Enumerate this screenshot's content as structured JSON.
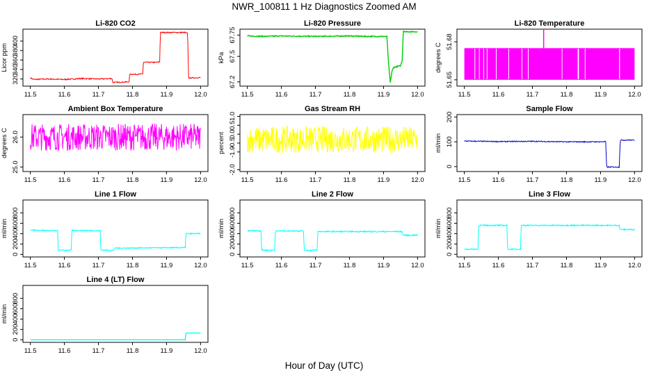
{
  "title": "NWR_100811  1 Hz Diagnostics Zoomed AM",
  "xlabel": "Hour of Day (UTC)",
  "chart_data": [
    {
      "type": "line",
      "title": "Li-820 CO2",
      "ylabel": "Licor ppm",
      "color": "#ff0000",
      "xlim": [
        11.5,
        12.0
      ],
      "ylim": [
        305,
        425
      ],
      "xticks": [
        "11.5",
        "11.6",
        "11.7",
        "11.8",
        "11.9",
        "12.0"
      ],
      "yticks": [
        {
          "v": 320,
          "label": "320"
        },
        {
          "v": 340,
          "label": "340"
        },
        {
          "v": 360,
          "label": "360"
        },
        {
          "v": 380,
          "label": "380"
        },
        {
          "v": 400,
          "label": "400"
        }
      ],
      "noise": 1.2,
      "series": [
        {
          "x": [
            11.5,
            11.51,
            11.55,
            11.6,
            11.65,
            11.7,
            11.74,
            11.742,
            11.76,
            11.79,
            11.792,
            11.82,
            11.83,
            11.832,
            11.87,
            11.88,
            11.882,
            11.955,
            11.962,
            11.965,
            12.0
          ],
          "y": [
            322,
            319,
            320,
            319,
            321,
            320,
            321,
            313,
            313,
            314,
            330,
            330,
            331,
            355,
            355,
            356,
            418,
            418,
            416,
            322,
            323
          ]
        }
      ]
    },
    {
      "type": "line",
      "title": "Li-820 Pressure",
      "ylabel": "kPa",
      "color": "#00cc00",
      "xlim": [
        11.5,
        12.0
      ],
      "ylim": [
        67.15,
        67.82
      ],
      "xticks": [
        "11.5",
        "11.6",
        "11.7",
        "11.8",
        "11.9",
        "12.0"
      ],
      "yticks": [
        {
          "v": 67.2,
          "label": "67.2"
        },
        {
          "v": 67.5,
          "label": "67.5"
        },
        {
          "v": 67.75,
          "label": "67.75"
        }
      ],
      "noise": 0.006,
      "series": [
        {
          "x": [
            11.5,
            11.55,
            11.6,
            11.7,
            11.8,
            11.85,
            11.9,
            11.91,
            11.915,
            11.92,
            11.925,
            11.93,
            11.95,
            11.955,
            11.958,
            11.965,
            12.0
          ],
          "y": [
            67.74,
            67.735,
            67.74,
            67.735,
            67.74,
            67.735,
            67.735,
            67.73,
            67.4,
            67.19,
            67.33,
            67.37,
            67.39,
            67.45,
            67.8,
            67.79,
            67.79
          ]
        }
      ]
    },
    {
      "type": "line",
      "title": "Li-820 Temperature",
      "ylabel": "degrees C",
      "color": "#ff00ff",
      "xlim": [
        11.5,
        12.0
      ],
      "ylim": [
        51.645,
        51.69
      ],
      "xticks": [
        "11.5",
        "11.6",
        "11.7",
        "11.8",
        "11.9",
        "12.0"
      ],
      "yticks": [
        {
          "v": 51.65,
          "label": "51.65"
        },
        {
          "v": 51.68,
          "label": "51.68"
        }
      ],
      "band": [
        51.65,
        51.675
      ],
      "spike": {
        "x": 11.733,
        "y": 51.69
      }
    },
    {
      "type": "line",
      "title": "Ambient Box Temperature",
      "ylabel": "degrees C",
      "color": "#ff00ff",
      "xlim": [
        11.5,
        12.0
      ],
      "ylim": [
        24.85,
        26.75
      ],
      "xticks": [
        "11.5",
        "11.6",
        "11.7",
        "11.8",
        "11.9",
        "12.0"
      ],
      "yticks": [
        {
          "v": 25.0,
          "label": "25.0"
        },
        {
          "v": 26.0,
          "label": "26.0"
        }
      ],
      "noise": 0.45,
      "series": [
        {
          "x": [
            11.5,
            12.0
          ],
          "y": [
            26.0,
            26.0
          ]
        }
      ]
    },
    {
      "type": "line",
      "title": "Gas Stream RH",
      "ylabel": "percent",
      "color": "#ffff00",
      "xlim": [
        11.5,
        12.0
      ],
      "ylim": [
        -2.1,
        1.1
      ],
      "xticks": [
        "11.5",
        "11.6",
        "11.7",
        "11.8",
        "11.9",
        "12.0"
      ],
      "yticks": [
        {
          "v": -2.0,
          "label": "-2.0"
        },
        {
          "v": -1.0,
          "label": "-1.0"
        },
        {
          "v": -0.5,
          "label": "-0.5"
        },
        {
          "v": 0.0,
          "label": "0.0"
        },
        {
          "v": 0.5,
          "label": "0.5"
        },
        {
          "v": 1.0,
          "label": "1.0"
        }
      ],
      "noise": 0.75,
      "series": [
        {
          "x": [
            11.5,
            12.0
          ],
          "y": [
            -0.3,
            -0.3
          ]
        }
      ]
    },
    {
      "type": "line",
      "title": "Sample Flow",
      "ylabel": "ml/min",
      "color": "#0000cc",
      "xlim": [
        11.5,
        12.0
      ],
      "ylim": [
        -20,
        210
      ],
      "xticks": [
        "11.5",
        "11.6",
        "11.7",
        "11.8",
        "11.9",
        "12.0"
      ],
      "yticks": [
        {
          "v": 0,
          "label": "0"
        },
        {
          "v": 100,
          "label": "100"
        },
        {
          "v": 200,
          "label": "200"
        }
      ],
      "noise": 2,
      "series": [
        {
          "x": [
            11.5,
            11.6,
            11.7,
            11.8,
            11.9,
            11.915,
            11.918,
            11.955,
            11.958,
            12.0
          ],
          "y": [
            103,
            101,
            102,
            100,
            100,
            101,
            -2,
            -2,
            107,
            107
          ]
        }
      ]
    },
    {
      "type": "line",
      "title": "Line 1 Flow",
      "ylabel": "ml/min",
      "color": "#00ffff",
      "xlim": [
        11.5,
        12.0
      ],
      "ylim": [
        -50,
        1050
      ],
      "xticks": [
        "11.5",
        "11.6",
        "11.7",
        "11.8",
        "11.9",
        "12.0"
      ],
      "yticks": [
        {
          "v": 0,
          "label": "0"
        },
        {
          "v": 200,
          "label": "200"
        },
        {
          "v": 400,
          "label": "400"
        },
        {
          "v": 600,
          "label": "600"
        },
        {
          "v": 800,
          "label": "800"
        }
      ],
      "noise": 10,
      "series": [
        {
          "x": [
            11.5,
            11.58,
            11.582,
            11.62,
            11.622,
            11.705,
            11.707,
            11.745,
            11.747,
            11.955,
            11.957,
            12.0
          ],
          "y": [
            470,
            455,
            80,
            80,
            465,
            455,
            80,
            80,
            120,
            130,
            400,
            400
          ]
        }
      ]
    },
    {
      "type": "line",
      "title": "Line 2 Flow",
      "ylabel": "ml/min",
      "color": "#00ffff",
      "xlim": [
        11.5,
        12.0
      ],
      "ylim": [
        -50,
        1050
      ],
      "xticks": [
        "11.5",
        "11.6",
        "11.7",
        "11.8",
        "11.9",
        "12.0"
      ],
      "yticks": [
        {
          "v": 0,
          "label": "0"
        },
        {
          "v": 200,
          "label": "200"
        },
        {
          "v": 400,
          "label": "400"
        },
        {
          "v": 600,
          "label": "600"
        },
        {
          "v": 800,
          "label": "800"
        }
      ],
      "noise": 12,
      "series": [
        {
          "x": [
            11.5,
            11.54,
            11.542,
            11.58,
            11.582,
            11.665,
            11.667,
            11.705,
            11.707,
            11.955,
            11.957,
            12.0
          ],
          "y": [
            455,
            455,
            80,
            80,
            450,
            455,
            80,
            80,
            440,
            440,
            370,
            370
          ]
        }
      ]
    },
    {
      "type": "line",
      "title": "Line 3 Flow",
      "ylabel": "ml/min",
      "color": "#00ffff",
      "xlim": [
        11.5,
        12.0
      ],
      "ylim": [
        -50,
        1050
      ],
      "xticks": [
        "11.5",
        "11.6",
        "11.7",
        "11.8",
        "11.9",
        "12.0"
      ],
      "yticks": [
        {
          "v": 0,
          "label": "0"
        },
        {
          "v": 200,
          "label": "200"
        },
        {
          "v": 400,
          "label": "400"
        },
        {
          "v": 600,
          "label": "600"
        },
        {
          "v": 800,
          "label": "800"
        }
      ],
      "noise": 12,
      "series": [
        {
          "x": [
            11.5,
            11.54,
            11.542,
            11.625,
            11.627,
            11.665,
            11.667,
            11.955,
            11.957,
            12.0
          ],
          "y": [
            100,
            100,
            560,
            560,
            100,
            100,
            560,
            560,
            480,
            480
          ]
        }
      ]
    },
    {
      "type": "line",
      "title": "Line 4 (LT) Flow",
      "ylabel": "ml/min",
      "color": "#00ffff",
      "xlim": [
        11.5,
        12.0
      ],
      "ylim": [
        -50,
        1050
      ],
      "xticks": [
        "11.5",
        "11.6",
        "11.7",
        "11.8",
        "11.9",
        "12.0"
      ],
      "yticks": [
        {
          "v": 0,
          "label": "0"
        },
        {
          "v": 200,
          "label": "200"
        },
        {
          "v": 400,
          "label": "400"
        },
        {
          "v": 600,
          "label": "600"
        },
        {
          "v": 800,
          "label": "800"
        }
      ],
      "noise": 0,
      "series": [
        {
          "x": [
            11.5,
            11.955,
            11.957,
            12.0
          ],
          "y": [
            0,
            0,
            130,
            130
          ]
        }
      ]
    }
  ]
}
